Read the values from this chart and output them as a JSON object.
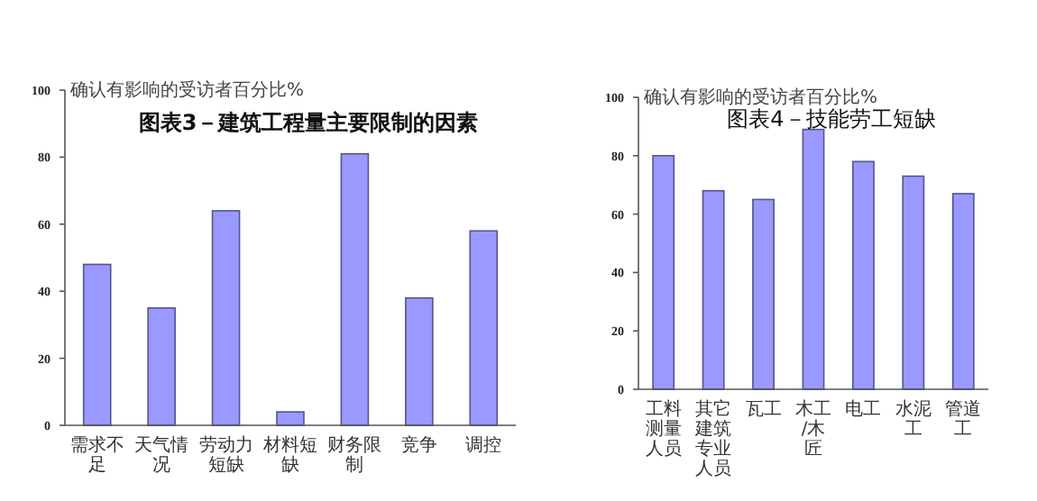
{
  "chart_data": [
    {
      "type": "bar",
      "title": "图表3－建筑工程量主要限制的因素",
      "ylabel": "确认有影响的受访者百分比%",
      "categories": [
        "需求不足",
        "天气情况",
        "劳动力短缺",
        "材料短缺",
        "财务限制",
        "竞争",
        "调控"
      ],
      "values": [
        48,
        35,
        64,
        4,
        81,
        38,
        58
      ],
      "color": "#9999ff",
      "ylim": [
        0,
        100
      ],
      "yticks": [
        0,
        20,
        40,
        60,
        80,
        100
      ],
      "grid": false
    },
    {
      "type": "bar",
      "title": "图表4－技能劳工短缺",
      "ylabel": "确认有影响的受访者百分比%",
      "categories": [
        "工料测量人员",
        "其它建筑专业人员",
        "瓦工",
        "木工/木匠",
        "电工",
        "水泥工",
        "管道工"
      ],
      "values": [
        80,
        68,
        65,
        89,
        78,
        73,
        67
      ],
      "color": "#9999ff",
      "ylim": [
        0,
        100
      ],
      "yticks": [
        0,
        20,
        40,
        60,
        80,
        100
      ],
      "grid": false
    }
  ]
}
